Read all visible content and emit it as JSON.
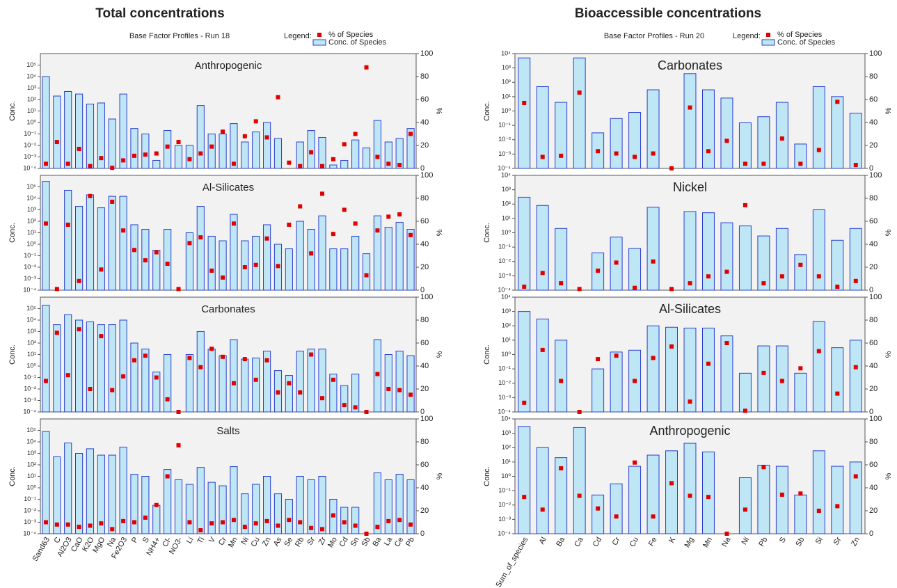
{
  "chart_data": [
    {
      "type": "bar",
      "heading": "Total concentrations",
      "title": "Base Factor Profiles - Run 18",
      "legend_title": "Legend:",
      "panel_label": "Anthropogenic",
      "ylabel": "Conc.",
      "y2label": "%",
      "log_scale": true,
      "ylim": [
        0.0001,
        1000000
      ],
      "yticks": [
        {
          "value": 0.0001,
          "label": "10⁻⁴"
        },
        {
          "value": 0.001,
          "label": "10⁻³"
        },
        {
          "value": 0.01,
          "label": "10⁻²"
        },
        {
          "value": 0.1,
          "label": "10⁻¹"
        },
        {
          "value": 1,
          "label": "10⁰"
        },
        {
          "value": 10,
          "label": "10¹"
        },
        {
          "value": 100,
          "label": "10²"
        },
        {
          "value": 1000,
          "label": "10³"
        },
        {
          "value": 10000,
          "label": "10⁴"
        },
        {
          "value": 100000,
          "label": "10⁵"
        }
      ],
      "y2lim": [
        0,
        100
      ],
      "y2ticks": [
        0,
        20,
        40,
        60,
        80,
        100
      ],
      "series": [
        {
          "name": "Conc. of Species",
          "color": "#bfe6f5",
          "values": [
            10000,
            200,
            500,
            300,
            40,
            50,
            2,
            300,
            0.3,
            0.1,
            0.0005,
            0.2,
            0.01,
            0.01,
            30,
            0.1,
            0.1,
            0.8,
            0.02,
            0.15,
            1,
            0.04,
            null,
            0.02,
            0.2,
            0.05,
            0.0002,
            0.0005,
            0.03,
            0.006,
            1.5,
            0.02,
            0.04,
            0.3
          ]
        },
        {
          "name": "% of Species",
          "color": "#e00000",
          "axis": "y2",
          "values": [
            4,
            23,
            4,
            17,
            2,
            9,
            0.5,
            7,
            11,
            12,
            13,
            19,
            23,
            8,
            13,
            19,
            32,
            4,
            28,
            41,
            27,
            62,
            5,
            2,
            14,
            2,
            8,
            21,
            30,
            88,
            10,
            4,
            3,
            30
          ]
        }
      ]
    },
    {
      "type": "bar",
      "panel_label": "Al-Silicates",
      "ylabel": "Conc.",
      "y2label": "%",
      "log_scale": true,
      "ylim": [
        0.0001,
        1000000
      ],
      "yticks": [
        {
          "value": 0.0001,
          "label": "10⁻⁴"
        },
        {
          "value": 0.001,
          "label": "10⁻³"
        },
        {
          "value": 0.01,
          "label": "10⁻²"
        },
        {
          "value": 0.1,
          "label": "10⁻¹"
        },
        {
          "value": 1,
          "label": "10⁰"
        },
        {
          "value": 10,
          "label": "10¹"
        },
        {
          "value": 100,
          "label": "10²"
        },
        {
          "value": 1000,
          "label": "10³"
        },
        {
          "value": 10000,
          "label": "10⁴"
        },
        {
          "value": 100000,
          "label": "10⁵"
        }
      ],
      "y2lim": [
        0,
        100
      ],
      "y2ticks": [
        0,
        20,
        40,
        60,
        80,
        100
      ],
      "series": [
        {
          "color": "#bfe6f5",
          "values": [
            300000,
            null,
            50000,
            2000,
            20000,
            1500,
            15000,
            15000,
            50,
            20,
            0.3,
            20,
            null,
            10,
            2000,
            5,
            2,
            400,
            2,
            5,
            50,
            1,
            0.4,
            100,
            20,
            300,
            0.4,
            0.4,
            5,
            0.15,
            300,
            30,
            80,
            20
          ]
        },
        {
          "color": "#e00000",
          "axis": "y2",
          "values": [
            58,
            1,
            57,
            8,
            82,
            18,
            77,
            52,
            35,
            26,
            33,
            23,
            1,
            41,
            46,
            17,
            11,
            58,
            20,
            22,
            45,
            21,
            57,
            73,
            32,
            84,
            49,
            70,
            58,
            13,
            52,
            64,
            66,
            48
          ]
        }
      ]
    },
    {
      "type": "bar",
      "panel_label": "Carbonates",
      "ylabel": "Conc.",
      "y2label": "%",
      "log_scale": true,
      "ylim": [
        0.0001,
        1000000
      ],
      "yticks": [
        {
          "value": 0.0001,
          "label": "10⁻⁴"
        },
        {
          "value": 0.001,
          "label": "10⁻³"
        },
        {
          "value": 0.01,
          "label": "10⁻²"
        },
        {
          "value": 0.1,
          "label": "10⁻¹"
        },
        {
          "value": 1,
          "label": "10⁰"
        },
        {
          "value": 10,
          "label": "10¹"
        },
        {
          "value": 100,
          "label": "10²"
        },
        {
          "value": 1000,
          "label": "10³"
        },
        {
          "value": 10000,
          "label": "10⁴"
        },
        {
          "value": 100000,
          "label": "10⁵"
        }
      ],
      "y2lim": [
        0,
        100
      ],
      "y2ticks": [
        0,
        20,
        40,
        60,
        80,
        100
      ],
      "series": [
        {
          "color": "#bfe6f5",
          "values": [
            200000,
            4000,
            30000,
            10000,
            7000,
            4000,
            4000,
            10000,
            100,
            30,
            0.3,
            10,
            null,
            10,
            1000,
            30,
            8,
            200,
            4,
            5,
            20,
            0.4,
            0.15,
            20,
            30,
            30,
            0.2,
            0.02,
            0.2,
            null,
            200,
            10,
            20,
            8
          ]
        },
        {
          "color": "#e00000",
          "axis": "y2",
          "values": [
            27,
            69,
            32,
            72,
            20,
            66,
            19,
            31,
            45,
            49,
            30,
            11,
            0,
            47,
            39,
            55,
            48,
            25,
            46,
            28,
            45,
            17,
            25,
            17,
            50,
            12,
            28,
            6,
            4,
            0,
            33,
            20,
            19,
            15
          ]
        }
      ]
    },
    {
      "type": "bar",
      "panel_label": "Salts",
      "ylabel": "Conc.",
      "y2label": "%",
      "log_scale": true,
      "categories": [
        "Sand63",
        "C",
        "Al2O3",
        "CaO",
        "K2O",
        "MgO",
        "Na",
        "Fe2O3",
        "P",
        "S",
        "NH4+",
        "Cl-",
        "NO3-",
        "Li",
        "Ti",
        "V",
        "Cr",
        "Mn",
        "Ni",
        "Cu",
        "Zn",
        "As",
        "Se",
        "Rb",
        "Sr",
        "Zr",
        "Mo",
        "Cd",
        "Sn",
        "Sb",
        "Ba",
        "La",
        "Ce",
        "Pb"
      ],
      "ylim": [
        0.0001,
        1000000
      ],
      "yticks": [
        {
          "value": 0.0001,
          "label": "10⁻⁴"
        },
        {
          "value": 0.001,
          "label": "10⁻³"
        },
        {
          "value": 0.01,
          "label": "10⁻²"
        },
        {
          "value": 0.1,
          "label": "10⁻¹"
        },
        {
          "value": 1,
          "label": "10⁰"
        },
        {
          "value": 10,
          "label": "10¹"
        },
        {
          "value": 100,
          "label": "10²"
        },
        {
          "value": 1000,
          "label": "10³"
        },
        {
          "value": 10000,
          "label": "10⁴"
        },
        {
          "value": 100000,
          "label": "10⁵"
        }
      ],
      "y2lim": [
        0,
        100
      ],
      "y2ticks": [
        0,
        20,
        40,
        60,
        80,
        100
      ],
      "series": [
        {
          "color": "#bfe6f5",
          "values": [
            80000,
            500,
            8000,
            1000,
            2500,
            700,
            700,
            3500,
            15,
            10,
            0.03,
            40,
            5,
            2,
            60,
            3,
            1.5,
            70,
            0.3,
            2,
            10,
            0.3,
            0.1,
            10,
            5,
            10,
            0.1,
            0.02,
            0.02,
            null,
            20,
            5,
            15,
            5
          ]
        },
        {
          "color": "#e00000",
          "axis": "y2",
          "values": [
            10,
            8,
            8,
            6,
            7,
            9,
            4,
            11,
            10,
            14,
            25,
            50,
            77,
            10,
            3,
            9,
            10,
            12,
            6,
            9,
            11,
            7,
            12,
            10,
            5,
            4,
            16,
            10,
            7,
            0,
            6,
            11,
            12,
            8
          ]
        }
      ]
    },
    {
      "type": "bar",
      "heading": "Bioaccessible concentrations",
      "title": "Base Factor Profiles - Run 20",
      "legend_title": "Legend:",
      "panel_label": "Carbonates",
      "ylabel": "Conc.",
      "y2label": "%",
      "log_scale": true,
      "ylim": [
        0.0001,
        10000
      ],
      "yticks": [
        {
          "value": 0.0001,
          "label": "10⁻⁴"
        },
        {
          "value": 0.001,
          "label": "10⁻³"
        },
        {
          "value": 0.01,
          "label": "10⁻²"
        },
        {
          "value": 0.1,
          "label": "10⁻¹"
        },
        {
          "value": 1,
          "label": "10⁰"
        },
        {
          "value": 10,
          "label": "10¹"
        },
        {
          "value": 100,
          "label": "10²"
        },
        {
          "value": 1000,
          "label": "10³"
        },
        {
          "value": 10000,
          "label": "10⁴"
        }
      ],
      "y2lim": [
        0,
        100
      ],
      "y2ticks": [
        0,
        20,
        40,
        60,
        80,
        100
      ],
      "series": [
        {
          "name": "Conc. of Species",
          "color": "#bfe6f5",
          "values": [
            5000,
            50,
            4,
            5000,
            0.03,
            0.3,
            0.8,
            30,
            null,
            400,
            30,
            8,
            0.15,
            0.4,
            4,
            0.005,
            50,
            10,
            0.7
          ]
        },
        {
          "name": "% of Species",
          "color": "#e00000",
          "axis": "y2",
          "values": [
            57,
            10,
            11,
            66,
            15,
            13,
            10,
            13,
            0,
            53,
            15,
            24,
            4,
            4,
            26,
            4,
            16,
            58,
            3
          ]
        }
      ]
    },
    {
      "type": "bar",
      "panel_label": "Nickel",
      "ylabel": "Conc.",
      "y2label": "%",
      "log_scale": true,
      "ylim": [
        0.0001,
        10000
      ],
      "yticks": [
        {
          "value": 0.0001,
          "label": "10⁻⁴"
        },
        {
          "value": 0.001,
          "label": "10⁻³"
        },
        {
          "value": 0.01,
          "label": "10⁻²"
        },
        {
          "value": 0.1,
          "label": "10⁻¹"
        },
        {
          "value": 1,
          "label": "10⁰"
        },
        {
          "value": 10,
          "label": "10¹"
        },
        {
          "value": 100,
          "label": "10²"
        },
        {
          "value": 1000,
          "label": "10³"
        },
        {
          "value": 10000,
          "label": "10⁴"
        }
      ],
      "y2lim": [
        0,
        100
      ],
      "y2ticks": [
        0,
        20,
        40,
        60,
        80,
        100
      ],
      "series": [
        {
          "color": "#bfe6f5",
          "values": [
            300,
            80,
            2,
            null,
            0.04,
            0.5,
            0.08,
            60,
            null,
            30,
            25,
            5,
            3,
            0.6,
            2,
            0.03,
            40,
            0.3,
            2
          ]
        },
        {
          "color": "#e00000",
          "axis": "y2",
          "values": [
            3,
            15,
            6,
            1,
            17,
            24,
            2,
            25,
            1,
            6,
            12,
            16,
            74,
            6,
            12,
            22,
            12,
            3,
            8
          ]
        }
      ]
    },
    {
      "type": "bar",
      "panel_label": "Al-Silicates",
      "ylabel": "Conc.",
      "y2label": "%",
      "log_scale": true,
      "ylim": [
        0.0001,
        10000
      ],
      "yticks": [
        {
          "value": 0.0001,
          "label": "10⁻⁴"
        },
        {
          "value": 0.001,
          "label": "10⁻³"
        },
        {
          "value": 0.01,
          "label": "10⁻²"
        },
        {
          "value": 0.1,
          "label": "10⁻¹"
        },
        {
          "value": 1,
          "label": "10⁰"
        },
        {
          "value": 10,
          "label": "10¹"
        },
        {
          "value": 100,
          "label": "10²"
        },
        {
          "value": 1000,
          "label": "10³"
        },
        {
          "value": 10000,
          "label": "10⁴"
        }
      ],
      "y2lim": [
        0,
        100
      ],
      "y2ticks": [
        0,
        20,
        40,
        60,
        80,
        100
      ],
      "series": [
        {
          "color": "#bfe6f5",
          "values": [
            1000,
            300,
            10,
            null,
            0.1,
            1.5,
            2,
            100,
            80,
            70,
            70,
            20,
            0.05,
            4,
            4,
            0.05,
            200,
            3,
            10
          ]
        },
        {
          "color": "#e00000",
          "axis": "y2",
          "values": [
            8,
            54,
            27,
            0,
            46,
            49,
            27,
            47,
            57,
            9,
            42,
            60,
            1,
            34,
            27,
            38,
            53,
            16,
            39
          ]
        }
      ]
    },
    {
      "type": "bar",
      "panel_label": "Anthropogenic",
      "ylabel": "Conc.",
      "y2label": "%",
      "log_scale": true,
      "categories": [
        "Sum_of_species",
        "Al",
        "Ba",
        "Ca",
        "Cd",
        "Cr",
        "Cu",
        "Fe",
        "K",
        "Mg",
        "Mn",
        "Na",
        "Ni",
        "Pb",
        "S",
        "Sb",
        "Si",
        "Sr",
        "Zn"
      ],
      "ylim": [
        0.0001,
        10000
      ],
      "yticks": [
        {
          "value": 0.0001,
          "label": "10⁻⁴"
        },
        {
          "value": 0.001,
          "label": "10⁻³"
        },
        {
          "value": 0.01,
          "label": "10⁻²"
        },
        {
          "value": 0.1,
          "label": "10⁻¹"
        },
        {
          "value": 1,
          "label": "10⁰"
        },
        {
          "value": 10,
          "label": "10¹"
        },
        {
          "value": 100,
          "label": "10²"
        },
        {
          "value": 1000,
          "label": "10³"
        },
        {
          "value": 10000,
          "label": "10⁴"
        }
      ],
      "y2lim": [
        0,
        100
      ],
      "y2ticks": [
        0,
        20,
        40,
        60,
        80,
        100
      ],
      "series": [
        {
          "color": "#bfe6f5",
          "values": [
            3000,
            100,
            20,
            2500,
            0.05,
            0.3,
            5,
            30,
            60,
            200,
            50,
            null,
            0.8,
            6,
            5,
            0.05,
            60,
            5,
            10
          ]
        },
        {
          "color": "#e00000",
          "axis": "y2",
          "values": [
            32,
            21,
            57,
            33,
            22,
            15,
            62,
            15,
            44,
            33,
            32,
            0,
            21,
            58,
            34,
            35,
            20,
            24,
            50
          ]
        }
      ]
    }
  ]
}
